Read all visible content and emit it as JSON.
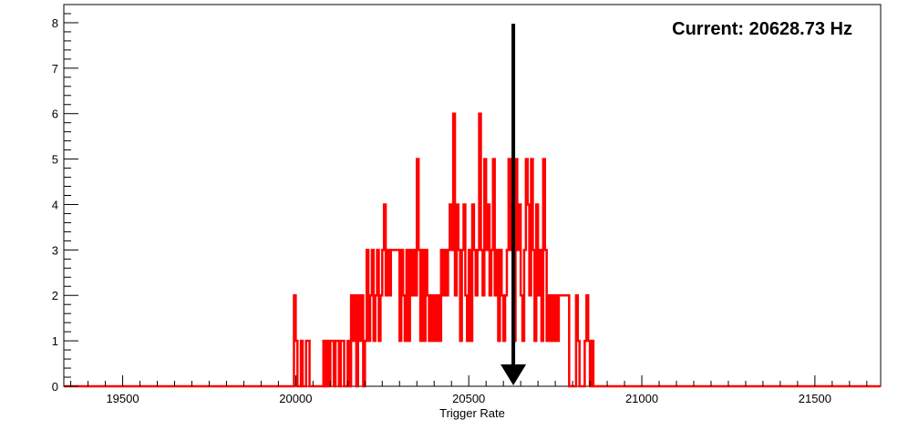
{
  "chart_data": {
    "type": "histogram",
    "title": "",
    "xlabel": "Trigger Rate",
    "ylabel": "",
    "xlim": [
      19330,
      21690
    ],
    "ylim": [
      0,
      8.4
    ],
    "x_ticks": [
      19500,
      20000,
      20500,
      21000,
      21500
    ],
    "y_ticks": [
      0,
      1,
      2,
      3,
      4,
      5,
      6,
      7,
      8
    ],
    "grid": false,
    "line_color": "#ff0000",
    "series": [
      {
        "values": [
          [
            19995,
            20000,
            2
          ],
          [
            20000,
            20005,
            1
          ],
          [
            20005,
            20015,
            0
          ],
          [
            20015,
            20020,
            1
          ],
          [
            20020,
            20030,
            0
          ],
          [
            20030,
            20040,
            1
          ],
          [
            20040,
            20080,
            0
          ],
          [
            20080,
            20085,
            1
          ],
          [
            20085,
            20090,
            0
          ],
          [
            20090,
            20095,
            1
          ],
          [
            20095,
            20100,
            0
          ],
          [
            20100,
            20110,
            1
          ],
          [
            20110,
            20115,
            0
          ],
          [
            20115,
            20125,
            1
          ],
          [
            20125,
            20130,
            0
          ],
          [
            20130,
            20140,
            1
          ],
          [
            20140,
            20150,
            0
          ],
          [
            20150,
            20155,
            1
          ],
          [
            20155,
            20160,
            0
          ],
          [
            20160,
            20165,
            2
          ],
          [
            20165,
            20170,
            1
          ],
          [
            20170,
            20175,
            2
          ],
          [
            20175,
            20180,
            0
          ],
          [
            20180,
            20185,
            2
          ],
          [
            20185,
            20190,
            1
          ],
          [
            20190,
            20195,
            2
          ],
          [
            20195,
            20200,
            0
          ],
          [
            20200,
            20205,
            1
          ],
          [
            20205,
            20210,
            3
          ],
          [
            20210,
            20215,
            1
          ],
          [
            20215,
            20220,
            2
          ],
          [
            20220,
            20225,
            3
          ],
          [
            20225,
            20230,
            1
          ],
          [
            20230,
            20235,
            2
          ],
          [
            20235,
            20240,
            3
          ],
          [
            20240,
            20245,
            1
          ],
          [
            20245,
            20250,
            2
          ],
          [
            20250,
            20255,
            3
          ],
          [
            20255,
            20260,
            4
          ],
          [
            20260,
            20265,
            2
          ],
          [
            20265,
            20270,
            3
          ],
          [
            20270,
            20275,
            2
          ],
          [
            20275,
            20300,
            3
          ],
          [
            20300,
            20305,
            1
          ],
          [
            20305,
            20310,
            3
          ],
          [
            20310,
            20315,
            2
          ],
          [
            20315,
            20320,
            1
          ],
          [
            20320,
            20325,
            3
          ],
          [
            20325,
            20330,
            1
          ],
          [
            20330,
            20335,
            3
          ],
          [
            20335,
            20340,
            2
          ],
          [
            20340,
            20345,
            3
          ],
          [
            20345,
            20350,
            2
          ],
          [
            20350,
            20355,
            5
          ],
          [
            20355,
            20360,
            3
          ],
          [
            20360,
            20365,
            1
          ],
          [
            20365,
            20370,
            3
          ],
          [
            20370,
            20375,
            1
          ],
          [
            20375,
            20380,
            3
          ],
          [
            20380,
            20385,
            2
          ],
          [
            20385,
            20390,
            1
          ],
          [
            20390,
            20395,
            2
          ],
          [
            20395,
            20400,
            1
          ],
          [
            20400,
            20405,
            2
          ],
          [
            20405,
            20410,
            1
          ],
          [
            20410,
            20415,
            2
          ],
          [
            20415,
            20420,
            1
          ],
          [
            20420,
            20425,
            3
          ],
          [
            20425,
            20430,
            2
          ],
          [
            20430,
            20435,
            3
          ],
          [
            20435,
            20440,
            2
          ],
          [
            20440,
            20445,
            3
          ],
          [
            20445,
            20450,
            4
          ],
          [
            20450,
            20455,
            3
          ],
          [
            20455,
            20460,
            6
          ],
          [
            20460,
            20465,
            2
          ],
          [
            20465,
            20470,
            4
          ],
          [
            20470,
            20475,
            3
          ],
          [
            20475,
            20480,
            1
          ],
          [
            20480,
            20485,
            3
          ],
          [
            20485,
            20490,
            4
          ],
          [
            20490,
            20495,
            2
          ],
          [
            20495,
            20500,
            1
          ],
          [
            20500,
            20505,
            3
          ],
          [
            20505,
            20510,
            1
          ],
          [
            20510,
            20515,
            4
          ],
          [
            20515,
            20520,
            3
          ],
          [
            20520,
            20525,
            2
          ],
          [
            20525,
            20530,
            3
          ],
          [
            20530,
            20535,
            6
          ],
          [
            20535,
            20540,
            3
          ],
          [
            20540,
            20545,
            2
          ],
          [
            20545,
            20550,
            5
          ],
          [
            20550,
            20555,
            3
          ],
          [
            20555,
            20560,
            4
          ],
          [
            20560,
            20565,
            2
          ],
          [
            20565,
            20570,
            3
          ],
          [
            20570,
            20575,
            5
          ],
          [
            20575,
            20580,
            2
          ],
          [
            20580,
            20585,
            3
          ],
          [
            20585,
            20590,
            1
          ],
          [
            20590,
            20595,
            3
          ],
          [
            20595,
            20600,
            2
          ],
          [
            20600,
            20605,
            1
          ],
          [
            20605,
            20610,
            2
          ],
          [
            20610,
            20615,
            3
          ],
          [
            20615,
            20620,
            5
          ],
          [
            20620,
            20625,
            3
          ],
          [
            20625,
            20630,
            4
          ],
          [
            20630,
            20635,
            1
          ],
          [
            20635,
            20640,
            5
          ],
          [
            20640,
            20645,
            3
          ],
          [
            20645,
            20650,
            4
          ],
          [
            20650,
            20655,
            2
          ],
          [
            20655,
            20660,
            1
          ],
          [
            20660,
            20665,
            3
          ],
          [
            20665,
            20670,
            5
          ],
          [
            20670,
            20675,
            4
          ],
          [
            20675,
            20680,
            2
          ],
          [
            20680,
            20685,
            5
          ],
          [
            20685,
            20690,
            3
          ],
          [
            20690,
            20695,
            1
          ],
          [
            20695,
            20700,
            4
          ],
          [
            20700,
            20705,
            2
          ],
          [
            20705,
            20710,
            3
          ],
          [
            20710,
            20715,
            1
          ],
          [
            20715,
            20720,
            5
          ],
          [
            20720,
            20725,
            3
          ],
          [
            20725,
            20730,
            1
          ],
          [
            20730,
            20735,
            2
          ],
          [
            20735,
            20740,
            1
          ],
          [
            20740,
            20745,
            2
          ],
          [
            20745,
            20750,
            1
          ],
          [
            20750,
            20755,
            2
          ],
          [
            20755,
            20760,
            1
          ],
          [
            20760,
            20790,
            2
          ],
          [
            20790,
            20810,
            0
          ],
          [
            20810,
            20815,
            2
          ],
          [
            20815,
            20820,
            1
          ],
          [
            20820,
            20835,
            0
          ],
          [
            20835,
            20840,
            1
          ],
          [
            20840,
            20845,
            2
          ],
          [
            20845,
            20850,
            1
          ],
          [
            20850,
            20855,
            0
          ],
          [
            20855,
            20860,
            1
          ],
          [
            20860,
            20880,
            0
          ]
        ]
      }
    ],
    "marker": {
      "x": 20628.73,
      "type": "arrow",
      "color": "#000000"
    },
    "annotation": "Current: 20628.73 Hz"
  }
}
